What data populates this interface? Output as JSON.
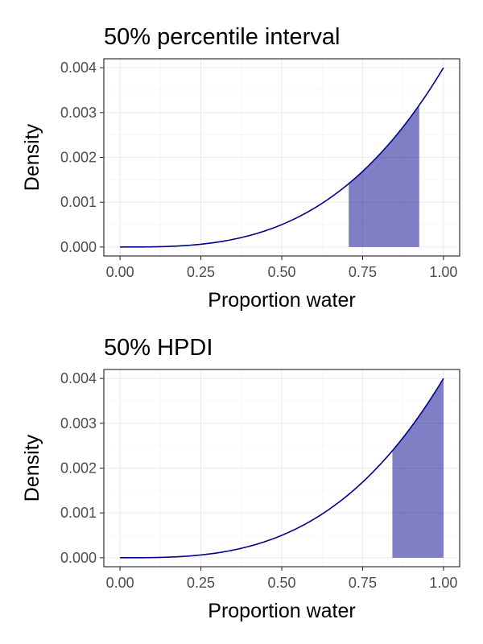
{
  "colors": {
    "line": "#00008b",
    "shade": "#00008b"
  },
  "chart_data": [
    {
      "type": "area",
      "title": "50% percentile interval",
      "xlabel": "Proportion water",
      "ylabel": "Density",
      "xlim": [
        0,
        1
      ],
      "ylim": [
        0,
        0.004
      ],
      "xticks": [
        "0.00",
        "0.25",
        "0.50",
        "0.75",
        "1.00"
      ],
      "yticks": [
        "0.000",
        "0.001",
        "0.002",
        "0.003",
        "0.004"
      ],
      "grid": true,
      "curve": {
        "x": [
          0,
          0.1,
          0.2,
          0.3,
          0.4,
          0.5,
          0.6,
          0.7,
          0.8,
          0.9,
          1.0
        ],
        "y": [
          0,
          4e-06,
          3.2e-05,
          0.000108,
          0.000256,
          0.0005,
          0.000864,
          0.001372,
          0.002048,
          0.002916,
          0.004
        ]
      },
      "shaded_interval": [
        0.707,
        0.925
      ]
    },
    {
      "type": "area",
      "title": "50% HPDI",
      "xlabel": "Proportion water",
      "ylabel": "Density",
      "xlim": [
        0,
        1
      ],
      "ylim": [
        0,
        0.004
      ],
      "xticks": [
        "0.00",
        "0.25",
        "0.50",
        "0.75",
        "1.00"
      ],
      "yticks": [
        "0.000",
        "0.001",
        "0.002",
        "0.003",
        "0.004"
      ],
      "grid": true,
      "curve": {
        "x": [
          0,
          0.1,
          0.2,
          0.3,
          0.4,
          0.5,
          0.6,
          0.7,
          0.8,
          0.9,
          1.0
        ],
        "y": [
          0,
          4e-06,
          3.2e-05,
          0.000108,
          0.000256,
          0.0005,
          0.000864,
          0.001372,
          0.002048,
          0.002916,
          0.004
        ]
      },
      "shaded_interval": [
        0.842,
        1.0
      ]
    }
  ]
}
